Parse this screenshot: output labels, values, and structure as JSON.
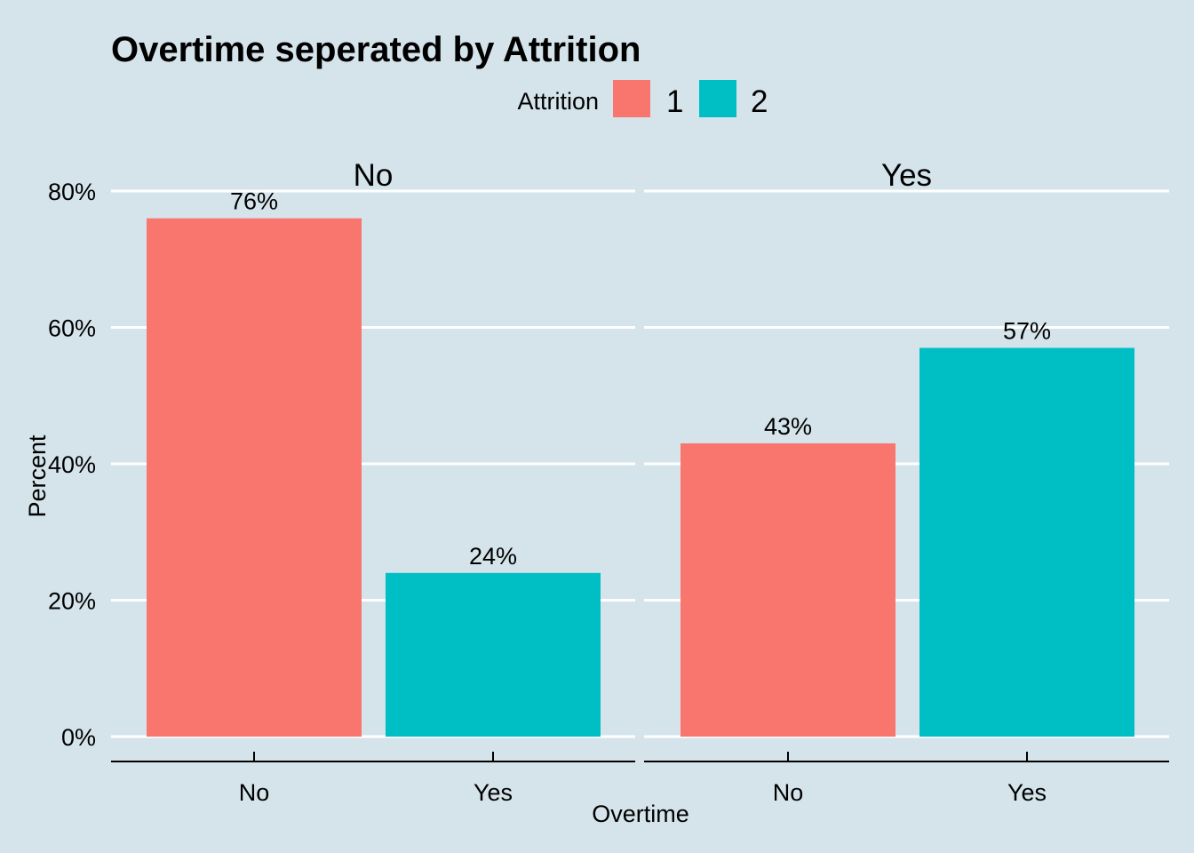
{
  "chart_data": {
    "type": "bar",
    "title": "Overtime seperated by Attrition",
    "xlabel": "Overtime",
    "ylabel": "Percent",
    "ylim": [
      0,
      0.8
    ],
    "yticks": [
      0,
      0.2,
      0.4,
      0.6,
      0.8
    ],
    "ytick_labels": [
      "0%",
      "20%",
      "40%",
      "60%",
      "80%"
    ],
    "grid": true,
    "legend": {
      "title": "Attrition",
      "position": "top",
      "entries": [
        {
          "label": "1",
          "color": "#f8766d"
        },
        {
          "label": "2",
          "color": "#00bfc4"
        }
      ]
    },
    "panels": [
      {
        "strip": "No",
        "categories": [
          "No",
          "Yes"
        ],
        "values": [
          0.76,
          0.24
        ],
        "labels": [
          "76%",
          "24%"
        ],
        "groups": [
          "1",
          "2"
        ]
      },
      {
        "strip": "Yes",
        "categories": [
          "No",
          "Yes"
        ],
        "values": [
          0.43,
          0.57
        ],
        "labels": [
          "43%",
          "57%"
        ],
        "groups": [
          "1",
          "2"
        ]
      }
    ]
  }
}
